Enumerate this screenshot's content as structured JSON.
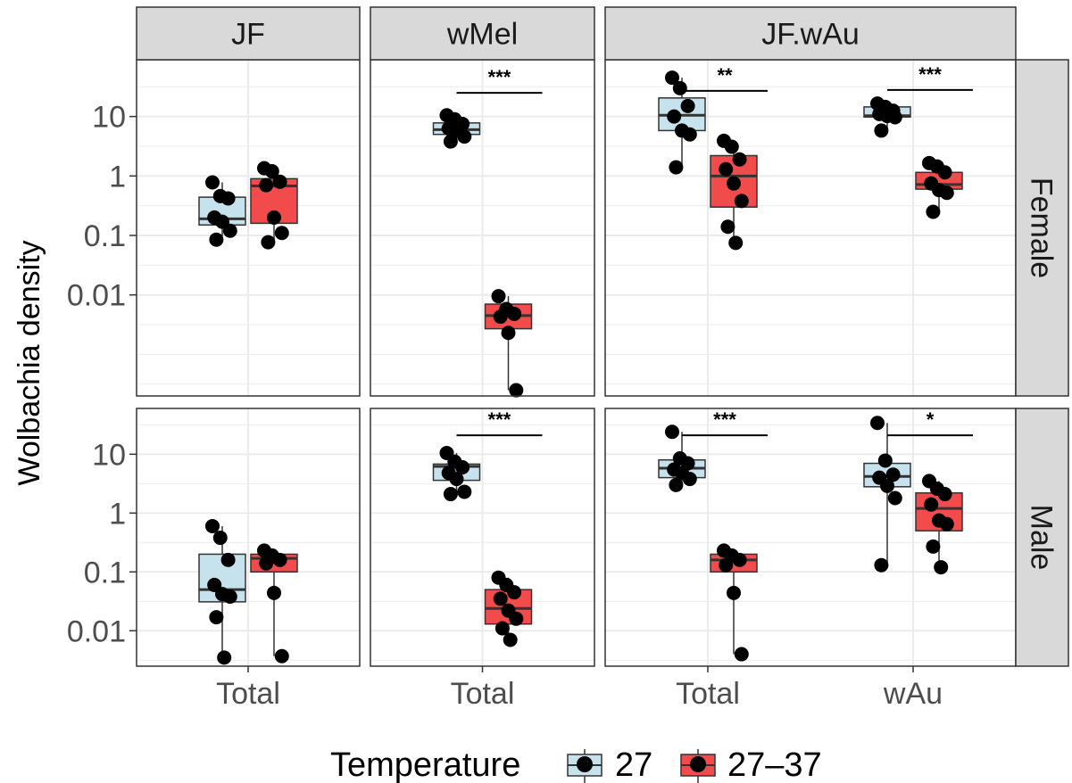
{
  "chart_data": {
    "type": "boxplot",
    "ylabel": "Wolbachia density",
    "y_scale": "log10",
    "y_ticks": [
      0.01,
      0.1,
      1,
      10
    ],
    "y_tick_labels": [
      "0.01",
      "0.1",
      "1",
      "10"
    ],
    "columns": [
      {
        "label": "JF",
        "categories": [
          "Total"
        ]
      },
      {
        "label": "wMel",
        "categories": [
          "Total"
        ]
      },
      {
        "label": "JF.wAu",
        "categories": [
          "Total",
          "wAu"
        ]
      }
    ],
    "rows": [
      {
        "label": "Female",
        "ylim": [
          0.0002,
          90
        ]
      },
      {
        "label": "Male",
        "ylim": [
          0.0025,
          60
        ]
      }
    ],
    "legend": {
      "title": "Temperature",
      "position": "bottom",
      "entries": [
        {
          "label": "27",
          "color": "#c6e2ec"
        },
        {
          "label": "27–37",
          "color": "#f24b4b"
        }
      ]
    },
    "grid": true,
    "panels": [
      {
        "row": 0,
        "col": 0,
        "groups": [
          {
            "category": "Total",
            "temp": 0,
            "q1": 0.15,
            "median": 0.19,
            "q3": 0.44,
            "min": 0.085,
            "max": 0.78,
            "points": [
              0.78,
              0.46,
              0.42,
              0.2,
              0.17,
              0.12,
              0.085
            ]
          },
          {
            "category": "Total",
            "temp": 1,
            "q1": 0.16,
            "median": 0.68,
            "q3": 0.9,
            "min": 0.077,
            "max": 1.35,
            "points": [
              1.35,
              1.2,
              0.8,
              0.7,
              0.2,
              0.11,
              0.077
            ]
          }
        ],
        "sig": []
      },
      {
        "row": 0,
        "col": 1,
        "groups": [
          {
            "category": "Total",
            "temp": 0,
            "q1": 5,
            "median": 6,
            "q3": 7.8,
            "min": 3.8,
            "max": 10.5,
            "points": [
              10.5,
              9,
              7.5,
              6.3,
              5.8,
              4.6,
              3.8
            ]
          },
          {
            "category": "Total",
            "temp": 1,
            "q1": 0.0027,
            "median": 0.0045,
            "q3": 0.007,
            "min": 0.00025,
            "max": 0.0095,
            "points": [
              0.0095,
              0.0058,
              0.0048,
              0.0043,
              0.0023,
              0.00025
            ]
          }
        ],
        "sig": [
          {
            "category": "Total",
            "label": "***",
            "y": 25
          }
        ]
      },
      {
        "row": 0,
        "col": 2,
        "groups": [
          {
            "category": "Total",
            "temp": 0,
            "q1": 5.8,
            "median": 10.5,
            "q3": 20.5,
            "min": 1.4,
            "max": 45,
            "points": [
              45,
              30,
              15,
              10,
              5.8,
              5,
              1.4
            ]
          },
          {
            "category": "Total",
            "temp": 1,
            "q1": 0.3,
            "median": 1,
            "q3": 2.2,
            "min": 0.075,
            "max": 3.9,
            "points": [
              3.9,
              3.1,
              1.9,
              1.3,
              0.75,
              0.38,
              0.14,
              0.075
            ]
          },
          {
            "category": "wAu",
            "temp": 0,
            "q1": 9.8,
            "median": 10.3,
            "q3": 14.5,
            "min": 5.8,
            "max": 16.5,
            "points": [
              16.5,
              14.5,
              12.5,
              11,
              10.2,
              9.7,
              5.8
            ]
          },
          {
            "category": "wAu",
            "temp": 1,
            "q1": 0.6,
            "median": 0.72,
            "q3": 1.15,
            "min": 0.25,
            "max": 1.65,
            "points": [
              1.65,
              1.45,
              1.15,
              0.75,
              0.58,
              0.52,
              0.25
            ]
          }
        ],
        "sig": [
          {
            "category": "Total",
            "label": "**",
            "y": 27
          },
          {
            "category": "wAu",
            "label": "***",
            "y": 28
          }
        ]
      },
      {
        "row": 1,
        "col": 0,
        "groups": [
          {
            "category": "Total",
            "temp": 0,
            "q1": 0.031,
            "median": 0.05,
            "q3": 0.2,
            "min": 0.0035,
            "max": 0.6,
            "points": [
              0.6,
              0.38,
              0.16,
              0.06,
              0.042,
              0.038,
              0.017,
              0.0035
            ]
          },
          {
            "category": "Total",
            "temp": 1,
            "q1": 0.1,
            "median": 0.17,
            "q3": 0.2,
            "min": 0.0037,
            "max": 0.23,
            "points": [
              0.23,
              0.19,
              0.16,
              0.14,
              0.044,
              0.0037
            ]
          }
        ],
        "sig": []
      },
      {
        "row": 1,
        "col": 1,
        "groups": [
          {
            "category": "Total",
            "temp": 0,
            "q1": 3.6,
            "median": 6.2,
            "q3": 6.8,
            "min": 2.1,
            "max": 10.5,
            "points": [
              10.5,
              7.5,
              6,
              4.8,
              3.8,
              2.3,
              2.1
            ]
          },
          {
            "category": "Total",
            "temp": 1,
            "q1": 0.013,
            "median": 0.024,
            "q3": 0.05,
            "min": 0.007,
            "max": 0.08,
            "points": [
              0.08,
              0.06,
              0.045,
              0.035,
              0.022,
              0.016,
              0.011,
              0.007
            ]
          }
        ],
        "sig": [
          {
            "category": "Total",
            "label": "***",
            "y": 21
          }
        ]
      },
      {
        "row": 1,
        "col": 2,
        "groups": [
          {
            "category": "Total",
            "temp": 0,
            "q1": 4,
            "median": 5.8,
            "q3": 8,
            "min": 3,
            "max": 24,
            "points": [
              24,
              8.5,
              7,
              5.5,
              4.8,
              3.8,
              3
            ]
          },
          {
            "category": "Total",
            "temp": 1,
            "q1": 0.1,
            "median": 0.16,
            "q3": 0.2,
            "min": 0.004,
            "max": 0.23,
            "points": [
              0.23,
              0.19,
              0.16,
              0.13,
              0.044,
              0.004
            ]
          },
          {
            "category": "wAu",
            "temp": 0,
            "q1": 2.8,
            "median": 4.2,
            "q3": 7,
            "min": 0.13,
            "max": 34,
            "points": [
              34,
              7.8,
              4.5,
              4,
              2.9,
              1.8,
              0.13
            ]
          },
          {
            "category": "wAu",
            "temp": 1,
            "q1": 0.5,
            "median": 1.2,
            "q3": 2.2,
            "min": 0.12,
            "max": 3.5,
            "points": [
              3.5,
              2.6,
              2.1,
              1.4,
              0.75,
              0.65,
              0.27,
              0.12
            ]
          }
        ],
        "sig": [
          {
            "category": "Total",
            "label": "***",
            "y": 21
          },
          {
            "category": "wAu",
            "label": "*",
            "y": 21
          }
        ]
      }
    ]
  }
}
